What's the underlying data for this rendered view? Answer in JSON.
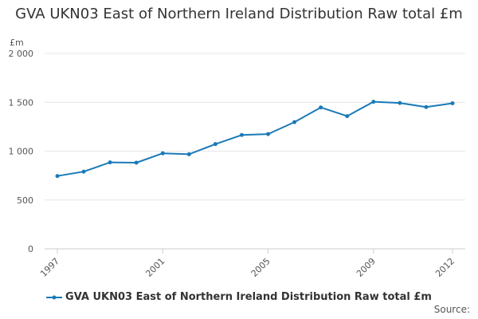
{
  "title": "GVA UKN03 East of Northern Ireland Distribution Raw total £m",
  "source_label": "Source:",
  "colors": {
    "series": "#1a7ab8",
    "grid": "#e6e6e6",
    "axis": "#cccccc",
    "text": "#555555"
  },
  "chart_data": {
    "type": "line",
    "title": "GVA UKN03 East of Northern Ireland Distribution Raw total £m",
    "ylabel": "£m",
    "xlabel": "",
    "ylim": [
      0,
      2000
    ],
    "yticks": [
      0,
      500,
      1000,
      1500,
      2000
    ],
    "ytick_labels": [
      "0",
      "500",
      "1 000",
      "1 500",
      "2 000"
    ],
    "xtick_labels": [
      "1997",
      "2001",
      "2005",
      "2009",
      "2012"
    ],
    "x": [
      1997,
      1998,
      1999,
      2000,
      2001,
      2002,
      2003,
      2004,
      2005,
      2006,
      2007,
      2008,
      2009,
      2010,
      2011,
      2012
    ],
    "series": [
      {
        "name": "GVA UKN03 East of Northern Ireland Distribution Raw total £m",
        "values": [
          745,
          790,
          885,
          882,
          978,
          968,
          1072,
          1165,
          1175,
          1297,
          1447,
          1358,
          1505,
          1493,
          1451,
          1490
        ]
      }
    ],
    "grid": true,
    "legend": "bottom-center"
  }
}
